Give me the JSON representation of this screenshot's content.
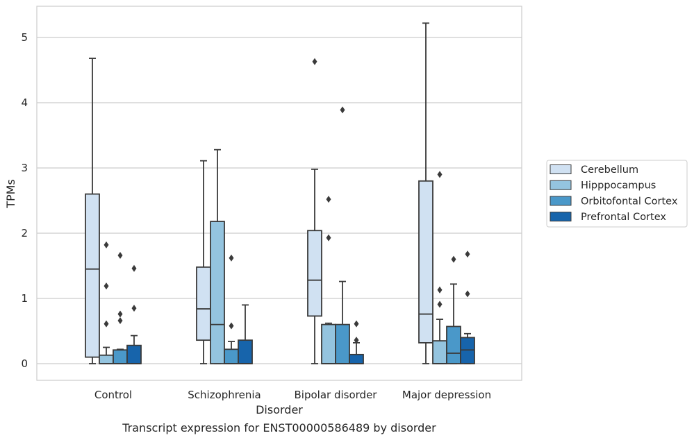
{
  "chart_data": {
    "type": "boxplot",
    "title": "Transcript expression for ENST00000586489 by disorder",
    "xlabel": "Disorder",
    "ylabel": "TPMs",
    "ylim": [
      -0.25,
      5.5
    ],
    "yticks": [
      0,
      1,
      2,
      3,
      4,
      5
    ],
    "grid": true,
    "legend_position": "right",
    "categories": [
      "Control",
      "Schizophrenia",
      "Bipolar disorder",
      "Major depression"
    ],
    "series": [
      {
        "name": "Cerebellum",
        "color": "#d0e1f2",
        "boxes": [
          {
            "whislo": 0.0,
            "q1": 0.1,
            "med": 1.45,
            "q3": 2.6,
            "whishi": 4.68,
            "fliers": []
          },
          {
            "whislo": 0.0,
            "q1": 0.36,
            "med": 0.84,
            "q3": 1.48,
            "whishi": 3.11,
            "fliers": []
          },
          {
            "whislo": 0.0,
            "q1": 0.73,
            "med": 1.28,
            "q3": 2.04,
            "whishi": 2.98,
            "fliers": [
              4.63
            ]
          },
          {
            "whislo": 0.0,
            "q1": 0.32,
            "med": 0.76,
            "q3": 2.8,
            "whishi": 5.22,
            "fliers": []
          }
        ]
      },
      {
        "name": "Hipppocampus",
        "color": "#94c4df",
        "boxes": [
          {
            "whislo": 0.0,
            "q1": 0.0,
            "med": 0.0,
            "q3": 0.13,
            "whishi": 0.25,
            "fliers": [
              0.61,
              1.19,
              1.82
            ]
          },
          {
            "whislo": 0.0,
            "q1": 0.0,
            "med": 0.6,
            "q3": 2.18,
            "whishi": 3.28,
            "fliers": []
          },
          {
            "whislo": 0.0,
            "q1": 0.0,
            "med": 0.0,
            "q3": 0.6,
            "whishi": 0.62,
            "fliers": [
              1.93,
              2.52
            ]
          },
          {
            "whislo": 0.0,
            "q1": 0.0,
            "med": 0.0,
            "q3": 0.35,
            "whishi": 0.68,
            "fliers": [
              0.91,
              1.13,
              2.9
            ]
          }
        ]
      },
      {
        "name": "Orbitofontal Cortex",
        "color": "#4a98c9",
        "boxes": [
          {
            "whislo": 0.0,
            "q1": 0.0,
            "med": 0.0,
            "q3": 0.21,
            "whishi": 0.22,
            "fliers": [
              0.66,
              0.76,
              1.66
            ]
          },
          {
            "whislo": 0.0,
            "q1": 0.0,
            "med": 0.0,
            "q3": 0.22,
            "whishi": 0.34,
            "fliers": [
              0.58,
              1.62
            ]
          },
          {
            "whislo": 0.0,
            "q1": 0.0,
            "med": 0.0,
            "q3": 0.6,
            "whishi": 1.26,
            "fliers": [
              3.89
            ]
          },
          {
            "whislo": 0.0,
            "q1": 0.0,
            "med": 0.16,
            "q3": 0.57,
            "whishi": 1.22,
            "fliers": [
              1.6
            ]
          }
        ]
      },
      {
        "name": "Prefrontal Cortex",
        "color": "#1764ab",
        "boxes": [
          {
            "whislo": 0.0,
            "q1": 0.0,
            "med": 0.0,
            "q3": 0.28,
            "whishi": 0.43,
            "fliers": [
              0.85,
              1.46
            ]
          },
          {
            "whislo": 0.0,
            "q1": 0.0,
            "med": 0.0,
            "q3": 0.36,
            "whishi": 0.9,
            "fliers": []
          },
          {
            "whislo": 0.0,
            "q1": 0.0,
            "med": 0.0,
            "q3": 0.14,
            "whishi": 0.32,
            "fliers": [
              0.36,
              0.61
            ]
          },
          {
            "whislo": 0.0,
            "q1": 0.0,
            "med": 0.21,
            "q3": 0.4,
            "whishi": 0.46,
            "fliers": [
              1.07,
              1.68
            ]
          }
        ]
      }
    ]
  }
}
